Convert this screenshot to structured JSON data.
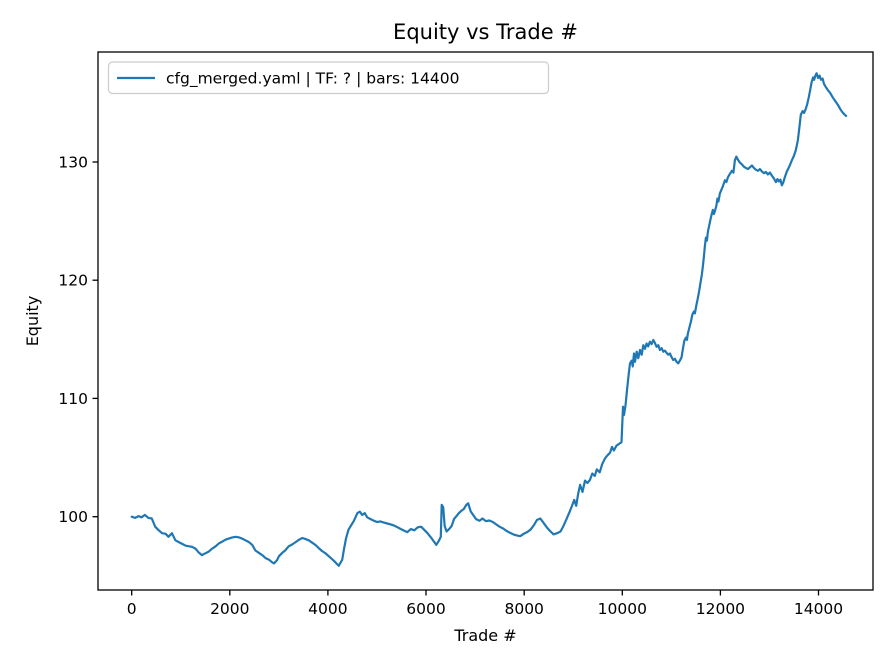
{
  "figure": {
    "background": "#ffffff",
    "line_color": "#1f77b4",
    "frame_color": "#000000",
    "legend_border_color": "#cccccc"
  },
  "chart_data": {
    "type": "line",
    "title": "Equity vs Trade #",
    "xlabel": "Trade #",
    "ylabel": "Equity",
    "xlim": [
      -687,
      15111
    ],
    "ylim": [
      93.8,
      139.3
    ],
    "x_ticks": [
      0,
      2000,
      4000,
      6000,
      8000,
      10000,
      12000,
      14000
    ],
    "y_ticks": [
      100,
      110,
      120,
      130
    ],
    "grid": false,
    "legend_position": "upper left",
    "series": [
      {
        "name": "cfg_merged.yaml | TF: ? | bars: 14400",
        "color": "#1f77b4",
        "points": [
          [
            0,
            100.0
          ],
          [
            70,
            99.9
          ],
          [
            140,
            100.05
          ],
          [
            200,
            99.95
          ],
          [
            270,
            100.15
          ],
          [
            340,
            99.9
          ],
          [
            410,
            99.85
          ],
          [
            480,
            99.15
          ],
          [
            550,
            98.85
          ],
          [
            620,
            98.6
          ],
          [
            690,
            98.55
          ],
          [
            750,
            98.3
          ],
          [
            820,
            98.6
          ],
          [
            890,
            98.0
          ],
          [
            960,
            97.85
          ],
          [
            1030,
            97.7
          ],
          [
            1100,
            97.55
          ],
          [
            1170,
            97.5
          ],
          [
            1230,
            97.45
          ],
          [
            1300,
            97.3
          ],
          [
            1360,
            97.0
          ],
          [
            1430,
            96.75
          ],
          [
            1500,
            96.9
          ],
          [
            1570,
            97.05
          ],
          [
            1640,
            97.3
          ],
          [
            1710,
            97.5
          ],
          [
            1780,
            97.75
          ],
          [
            1850,
            97.9
          ],
          [
            1910,
            98.05
          ],
          [
            1980,
            98.15
          ],
          [
            2050,
            98.25
          ],
          [
            2120,
            98.3
          ],
          [
            2190,
            98.25
          ],
          [
            2250,
            98.15
          ],
          [
            2320,
            98.0
          ],
          [
            2390,
            97.85
          ],
          [
            2460,
            97.6
          ],
          [
            2520,
            97.15
          ],
          [
            2590,
            96.95
          ],
          [
            2660,
            96.75
          ],
          [
            2730,
            96.5
          ],
          [
            2800,
            96.35
          ],
          [
            2860,
            96.15
          ],
          [
            2900,
            96.05
          ],
          [
            2960,
            96.3
          ],
          [
            3000,
            96.65
          ],
          [
            3070,
            96.95
          ],
          [
            3130,
            97.15
          ],
          [
            3200,
            97.5
          ],
          [
            3270,
            97.65
          ],
          [
            3340,
            97.85
          ],
          [
            3410,
            98.05
          ],
          [
            3480,
            98.2
          ],
          [
            3550,
            98.1
          ],
          [
            3610,
            98.0
          ],
          [
            3680,
            97.8
          ],
          [
            3750,
            97.6
          ],
          [
            3810,
            97.35
          ],
          [
            3880,
            97.1
          ],
          [
            3950,
            96.9
          ],
          [
            4020,
            96.65
          ],
          [
            4090,
            96.4
          ],
          [
            4150,
            96.15
          ],
          [
            4220,
            95.85
          ],
          [
            4290,
            96.35
          ],
          [
            4330,
            97.3
          ],
          [
            4370,
            98.2
          ],
          [
            4420,
            98.9
          ],
          [
            4470,
            99.25
          ],
          [
            4530,
            99.65
          ],
          [
            4600,
            100.3
          ],
          [
            4650,
            100.42
          ],
          [
            4700,
            100.15
          ],
          [
            4750,
            100.3
          ],
          [
            4800,
            99.95
          ],
          [
            4870,
            99.8
          ],
          [
            4940,
            99.65
          ],
          [
            5000,
            99.55
          ],
          [
            5070,
            99.6
          ],
          [
            5140,
            99.5
          ],
          [
            5210,
            99.42
          ],
          [
            5280,
            99.35
          ],
          [
            5350,
            99.25
          ],
          [
            5420,
            99.1
          ],
          [
            5490,
            98.95
          ],
          [
            5560,
            98.8
          ],
          [
            5620,
            98.7
          ],
          [
            5690,
            98.95
          ],
          [
            5760,
            98.85
          ],
          [
            5830,
            99.1
          ],
          [
            5900,
            99.15
          ],
          [
            5960,
            98.9
          ],
          [
            6030,
            98.6
          ],
          [
            6100,
            98.25
          ],
          [
            6160,
            97.9
          ],
          [
            6210,
            97.62
          ],
          [
            6260,
            97.95
          ],
          [
            6300,
            98.3
          ],
          [
            6320,
            101.0
          ],
          [
            6350,
            100.8
          ],
          [
            6380,
            99.2
          ],
          [
            6420,
            98.75
          ],
          [
            6470,
            98.95
          ],
          [
            6520,
            99.2
          ],
          [
            6570,
            99.8
          ],
          [
            6620,
            100.05
          ],
          [
            6670,
            100.3
          ],
          [
            6720,
            100.5
          ],
          [
            6770,
            100.65
          ],
          [
            6820,
            101.0
          ],
          [
            6860,
            101.13
          ],
          [
            6910,
            100.45
          ],
          [
            6960,
            100.15
          ],
          [
            7020,
            99.8
          ],
          [
            7090,
            99.65
          ],
          [
            7150,
            99.85
          ],
          [
            7220,
            99.62
          ],
          [
            7290,
            99.68
          ],
          [
            7360,
            99.55
          ],
          [
            7430,
            99.35
          ],
          [
            7500,
            99.15
          ],
          [
            7570,
            99.0
          ],
          [
            7640,
            98.8
          ],
          [
            7710,
            98.65
          ],
          [
            7780,
            98.5
          ],
          [
            7850,
            98.42
          ],
          [
            7920,
            98.35
          ],
          [
            7990,
            98.55
          ],
          [
            8060,
            98.7
          ],
          [
            8130,
            98.9
          ],
          [
            8200,
            99.3
          ],
          [
            8260,
            99.72
          ],
          [
            8330,
            99.85
          ],
          [
            8400,
            99.45
          ],
          [
            8470,
            99.05
          ],
          [
            8540,
            98.75
          ],
          [
            8600,
            98.5
          ],
          [
            8670,
            98.6
          ],
          [
            8740,
            98.75
          ],
          [
            8800,
            99.2
          ],
          [
            8860,
            99.75
          ],
          [
            8920,
            100.35
          ],
          [
            8970,
            100.85
          ],
          [
            9020,
            101.42
          ],
          [
            9060,
            100.92
          ],
          [
            9100,
            101.9
          ],
          [
            9140,
            102.7
          ],
          [
            9190,
            102.1
          ],
          [
            9240,
            103.05
          ],
          [
            9290,
            102.85
          ],
          [
            9340,
            103.1
          ],
          [
            9390,
            103.65
          ],
          [
            9440,
            103.45
          ],
          [
            9480,
            104.0
          ],
          [
            9540,
            103.75
          ],
          [
            9590,
            104.45
          ],
          [
            9650,
            104.95
          ],
          [
            9700,
            105.2
          ],
          [
            9750,
            105.4
          ],
          [
            9790,
            105.9
          ],
          [
            9830,
            105.6
          ],
          [
            9880,
            106.0
          ],
          [
            9950,
            106.2
          ],
          [
            9985,
            106.3
          ],
          [
            10014,
            109.3
          ],
          [
            10035,
            108.6
          ],
          [
            10066,
            109.4
          ],
          [
            10096,
            110.7
          ],
          [
            10127,
            111.9
          ],
          [
            10157,
            112.96
          ],
          [
            10192,
            113.2
          ],
          [
            10212,
            112.7
          ],
          [
            10239,
            113.8
          ],
          [
            10259,
            113.1
          ],
          [
            10294,
            113.95
          ],
          [
            10327,
            113.4
          ],
          [
            10361,
            114.1
          ],
          [
            10396,
            113.7
          ],
          [
            10429,
            114.5
          ],
          [
            10463,
            114.2
          ],
          [
            10496,
            114.65
          ],
          [
            10529,
            114.4
          ],
          [
            10564,
            114.8
          ],
          [
            10598,
            114.6
          ],
          [
            10632,
            114.94
          ],
          [
            10666,
            114.7
          ],
          [
            10700,
            114.37
          ],
          [
            10735,
            114.5
          ],
          [
            10768,
            114.1
          ],
          [
            10803,
            114.25
          ],
          [
            10836,
            113.95
          ],
          [
            10870,
            114.05
          ],
          [
            10904,
            113.85
          ],
          [
            10937,
            113.7
          ],
          [
            10971,
            113.8
          ],
          [
            11005,
            113.5
          ],
          [
            11039,
            113.25
          ],
          [
            11073,
            113.35
          ],
          [
            11107,
            113.1
          ],
          [
            11141,
            112.96
          ],
          [
            11175,
            113.2
          ],
          [
            11209,
            113.5
          ],
          [
            11236,
            114.2
          ],
          [
            11267,
            114.9
          ],
          [
            11298,
            115.15
          ],
          [
            11318,
            114.95
          ],
          [
            11338,
            115.5
          ],
          [
            11369,
            116.0
          ],
          [
            11399,
            116.5
          ],
          [
            11430,
            117.1
          ],
          [
            11460,
            117.35
          ],
          [
            11481,
            117.2
          ],
          [
            11511,
            117.9
          ],
          [
            11542,
            118.5
          ],
          [
            11572,
            119.2
          ],
          [
            11603,
            120.0
          ],
          [
            11623,
            120.5
          ],
          [
            11644,
            121.2
          ],
          [
            11664,
            122.0
          ],
          [
            11684,
            122.9
          ],
          [
            11705,
            123.6
          ],
          [
            11725,
            123.35
          ],
          [
            11745,
            124.1
          ],
          [
            11776,
            124.7
          ],
          [
            11806,
            125.3
          ],
          [
            11827,
            125.65
          ],
          [
            11847,
            125.95
          ],
          [
            11868,
            125.6
          ],
          [
            11888,
            125.85
          ],
          [
            11919,
            126.3
          ],
          [
            11939,
            126.9
          ],
          [
            11959,
            126.65
          ],
          [
            11990,
            127.35
          ],
          [
            12021,
            127.65
          ],
          [
            12051,
            127.95
          ],
          [
            12092,
            128.45
          ],
          [
            12123,
            128.3
          ],
          [
            12153,
            128.7
          ],
          [
            12194,
            129.0
          ],
          [
            12235,
            129.25
          ],
          [
            12265,
            129.1
          ],
          [
            12296,
            130.15
          ],
          [
            12326,
            130.45
          ],
          [
            12357,
            130.2
          ],
          [
            12398,
            129.95
          ],
          [
            12439,
            129.8
          ],
          [
            12480,
            129.6
          ],
          [
            12520,
            129.5
          ],
          [
            12560,
            129.4
          ],
          [
            12601,
            129.55
          ],
          [
            12642,
            129.7
          ],
          [
            12683,
            129.5
          ],
          [
            12724,
            129.35
          ],
          [
            12765,
            129.25
          ],
          [
            12805,
            129.4
          ],
          [
            12846,
            129.2
          ],
          [
            12887,
            129.05
          ],
          [
            12928,
            129.15
          ],
          [
            12968,
            128.95
          ],
          [
            13009,
            129.1
          ],
          [
            13050,
            128.85
          ],
          [
            13091,
            128.6
          ],
          [
            13131,
            128.3
          ],
          [
            13162,
            128.55
          ],
          [
            13192,
            128.35
          ],
          [
            13223,
            128.5
          ],
          [
            13253,
            128.03
          ],
          [
            13284,
            128.3
          ],
          [
            13314,
            128.7
          ],
          [
            13355,
            129.2
          ],
          [
            13416,
            129.7
          ],
          [
            13457,
            130.15
          ],
          [
            13497,
            130.5
          ],
          [
            13538,
            131.0
          ],
          [
            13579,
            131.8
          ],
          [
            13599,
            132.5
          ],
          [
            13620,
            133.3
          ],
          [
            13640,
            134.0
          ],
          [
            13675,
            134.3
          ],
          [
            13706,
            134.15
          ],
          [
            13737,
            134.45
          ],
          [
            13767,
            134.85
          ],
          [
            13798,
            135.4
          ],
          [
            13828,
            136.05
          ],
          [
            13859,
            136.75
          ],
          [
            13889,
            137.15
          ],
          [
            13910,
            136.95
          ],
          [
            13940,
            137.35
          ],
          [
            13961,
            137.5
          ],
          [
            13991,
            137.1
          ],
          [
            14022,
            137.3
          ],
          [
            14052,
            136.95
          ],
          [
            14083,
            137.05
          ],
          [
            14113,
            136.6
          ],
          [
            14154,
            136.3
          ],
          [
            14195,
            136.05
          ],
          [
            14236,
            135.85
          ],
          [
            14277,
            135.55
          ],
          [
            14317,
            135.3
          ],
          [
            14358,
            135.05
          ],
          [
            14399,
            134.8
          ],
          [
            14440,
            134.5
          ],
          [
            14480,
            134.25
          ],
          [
            14521,
            134.05
          ],
          [
            14562,
            133.9
          ]
        ]
      }
    ]
  }
}
